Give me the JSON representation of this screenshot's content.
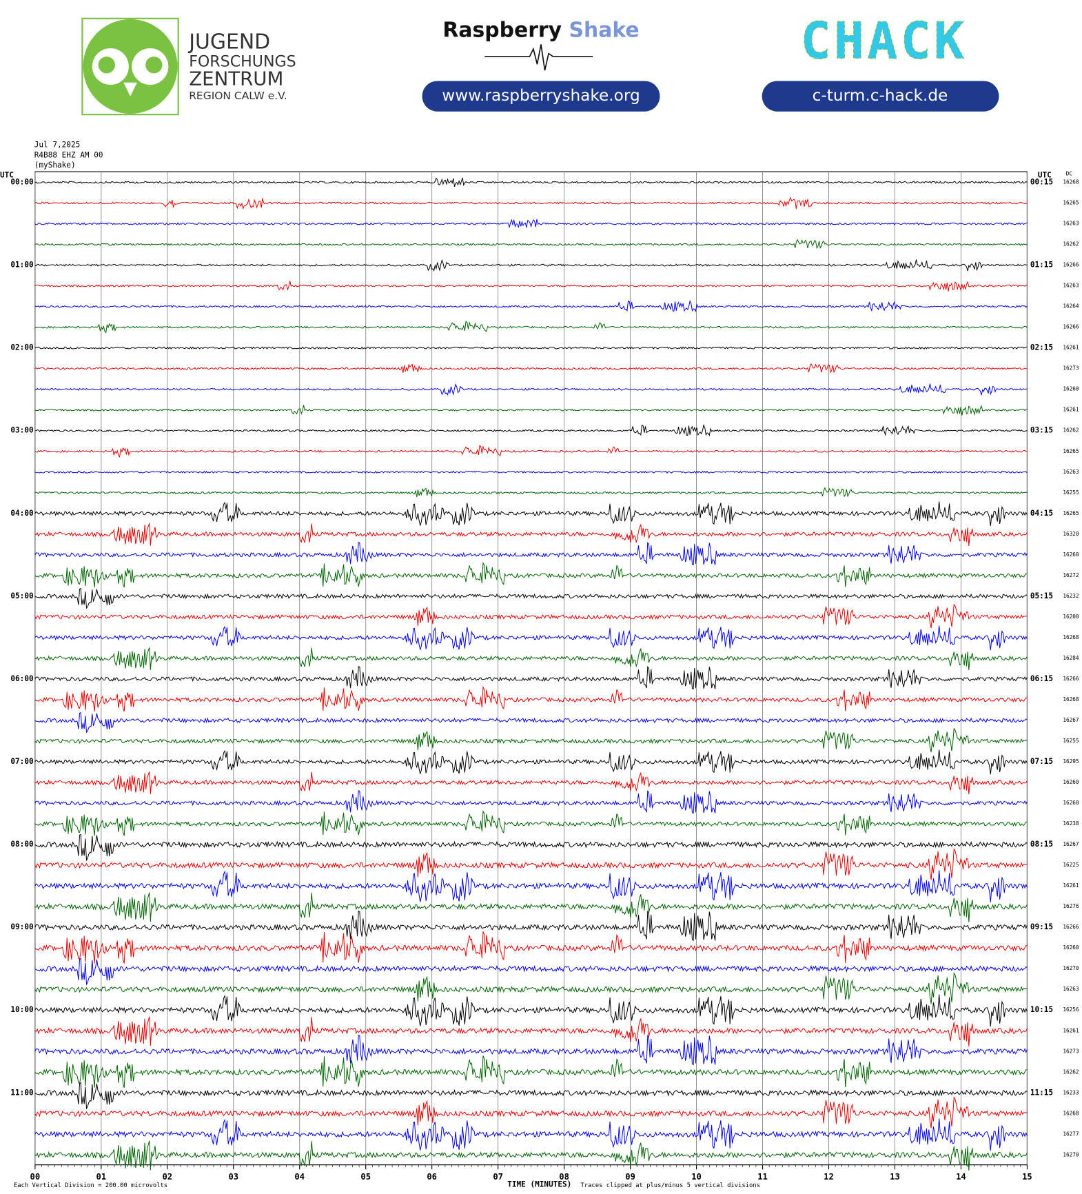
{
  "header": {
    "jfz": [
      "JUGEND",
      "FORSCHUNGS",
      "ZENTRUM",
      "REGION CALW e.V."
    ],
    "rs_name": "Raspberry",
    "rs_name2": "Shake",
    "rs_url": "www.raspberryshake.org",
    "chack": "CHACK",
    "chack_url": "c-turm.c-hack.de"
  },
  "chart_data": {
    "type": "helicorder",
    "info": [
      "Jul 7,2025",
      "R4B88 EHZ AM 00",
      "(myShake)"
    ],
    "left_unit": "UTC",
    "right_unit": "UTC",
    "dc_label": "DC",
    "xlabel": "TIME (MINUTES)",
    "scale_note": "Each Vertical Division =  200.00 microvolts",
    "clip_note": "Traces clipped at plus/minus 5 vertical divisions",
    "xlim": [
      0,
      15
    ],
    "xticks": [
      {
        "value": 0,
        "label": "00"
      },
      {
        "value": 1,
        "label": "01"
      },
      {
        "value": 2,
        "label": "02"
      },
      {
        "value": 3,
        "label": "03"
      },
      {
        "value": 4,
        "label": "04"
      },
      {
        "value": 5,
        "label": "05"
      },
      {
        "value": 6,
        "label": "06"
      },
      {
        "value": 7,
        "label": "07"
      },
      {
        "value": 8,
        "label": "08"
      },
      {
        "value": 9,
        "label": "09"
      },
      {
        "value": 10,
        "label": "10"
      },
      {
        "value": 11,
        "label": "11"
      },
      {
        "value": 12,
        "label": "12"
      },
      {
        "value": 13,
        "label": "13"
      },
      {
        "value": 14,
        "label": "14"
      },
      {
        "value": 15,
        "label": "15"
      }
    ],
    "grid": true,
    "colors": [
      "#000000",
      "#e00000",
      "#0000e0",
      "#006400"
    ],
    "hour_labels": [
      {
        "left": "00:00",
        "right": "00:15"
      },
      {
        "left": "01:00",
        "right": "01:15"
      },
      {
        "left": "02:00",
        "right": "02:15"
      },
      {
        "left": "03:00",
        "right": "03:15"
      },
      {
        "left": "04:00",
        "right": "04:15"
      },
      {
        "left": "05:00",
        "right": "05:15"
      },
      {
        "left": "06:00",
        "right": "06:15"
      },
      {
        "left": "07:00",
        "right": "07:15"
      },
      {
        "left": "08:00",
        "right": "08:15"
      },
      {
        "left": "09:00",
        "right": "09:15"
      },
      {
        "left": "10:00",
        "right": "10:15"
      },
      {
        "left": "11:00",
        "right": "11:15"
      }
    ],
    "dc": [
      16268,
      16265,
      16263,
      16262,
      16266,
      16263,
      16264,
      16266,
      16261,
      16273,
      16260,
      16261,
      16262,
      16265,
      16263,
      16255,
      16265,
      16320,
      16260,
      16272,
      16232,
      16200,
      16268,
      16284,
      16266,
      16268,
      16267,
      16255,
      16295,
      16260,
      16260,
      16238,
      16267,
      16225,
      16261,
      16276,
      16266,
      16260,
      16270,
      16263,
      16256,
      16261,
      16273,
      16262,
      16233,
      16268,
      16277,
      16270
    ]
  }
}
